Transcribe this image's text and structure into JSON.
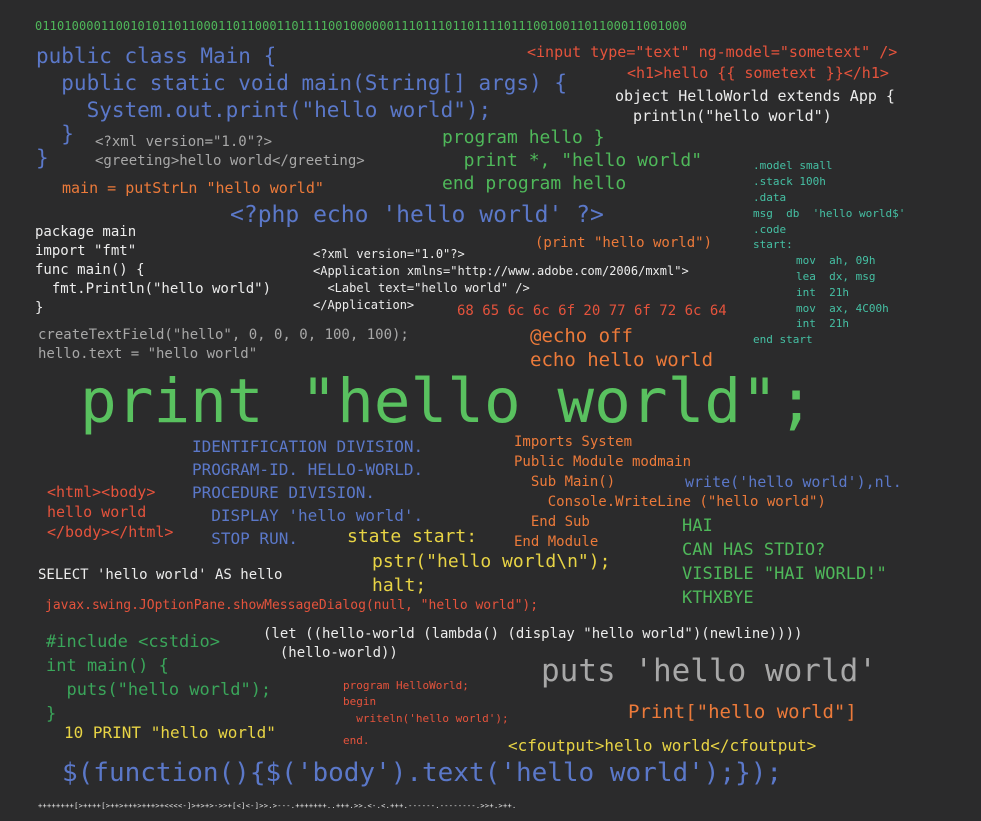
{
  "header_binary": "01101000011001010110110001101100011011110010000001110111011011110111001001101100011001000",
  "java": [
    "public class Main {",
    "  public static void main(String[] args) {",
    "    System.out.print(\"hello world\");",
    "  }",
    "}"
  ],
  "angular": [
    "<input type=\"text\" ng-model=\"sometext\" />",
    "<h1>hello {{ sometext }}</h1>"
  ],
  "scala": [
    "object HelloWorld extends App {",
    "  println(\"hello world\")"
  ],
  "xml": [
    "<?xml version=\"1.0\"?>",
    "<greeting>hello world</greeting>"
  ],
  "fortran": [
    "program hello }",
    "  print *, \"hello world\"",
    "end program hello"
  ],
  "haskell": "main = putStrLn \"hello world\"",
  "asm": [
    ".model small",
    ".stack 100h",
    ".data",
    "msg  db  'hello world$'",
    ".code",
    "start:",
    "mov  ah, 09h",
    "lea  dx, msg",
    "int  21h",
    "mov  ax, 4C00h",
    "int  21h",
    "end start"
  ],
  "php": "<?php echo 'hello world' ?>",
  "lisp_print": "(print \"hello world\")",
  "go": [
    "package main",
    "import \"fmt\"",
    "func main() {",
    "  fmt.Println(\"hello world\")",
    "}"
  ],
  "mxml": [
    "<?xml version=\"1.0\"?>",
    "<Application xmlns=\"http://www.adobe.com/2006/mxml\">",
    "  <Label text=\"hello world\" />",
    "</Application>"
  ],
  "hex": "68 65 6c 6c 6f 20 77 6f 72 6c 64",
  "actionscript": [
    "createTextField(\"hello\", 0, 0, 0, 100, 100);",
    "hello.text = \"hello world\""
  ],
  "batch": [
    "@echo off",
    "echo hello world"
  ],
  "main_print": "print \"hello world\";",
  "cobol": [
    "IDENTIFICATION DIVISION.",
    "PROGRAM-ID. HELLO-WORLD.",
    "PROCEDURE DIVISION.",
    "  DISPLAY 'hello world'.",
    "  STOP RUN."
  ],
  "vbnet": [
    "Imports System",
    "Public Module modmain",
    "  Sub Main()",
    "    Console.WriteLine (\"hello world\")",
    "  End Sub",
    "End Module"
  ],
  "prolog": "write('hello world'),nl.",
  "html": [
    "<html><body>",
    "hello world",
    "</body></html>"
  ],
  "state": [
    "state start:",
    "pstr(\"hello world\\n\");",
    "halt;"
  ],
  "lolcode": [
    "HAI",
    "CAN HAS STDIO?",
    "VISIBLE \"HAI WORLD!\"",
    "KTHXBYE"
  ],
  "sql": "SELECT 'hello world' AS hello",
  "javax": "javax.swing.JOptionPane.showMessageDialog(null, \"hello world\");",
  "cpp": [
    "#include <cstdio>",
    "int main() {",
    "  puts(\"hello world\");",
    "}"
  ],
  "scheme": [
    "(let ((hello-world (lambda() (display \"hello world\")(newline))))",
    "  (hello-world))"
  ],
  "ruby": "puts 'hello world'",
  "pascal": [
    "program HelloWorld;",
    "begin",
    "  writeln('hello world');",
    "end."
  ],
  "mathematica": "Print[\"hello world\"]",
  "basic": "10 PRINT \"hello world\"",
  "cfml": "<cfoutput>hello world</cfoutput>",
  "jquery": "$(function(){$('body').text('hello world');});",
  "brainfuck": "++++++++[>++++[>++>+++>+++>+<<<<-]>+>+>->>+[<]<-]>>.>---.+++++++..+++.>>.<-.<.+++.------.--------.>>+.>++."
}
